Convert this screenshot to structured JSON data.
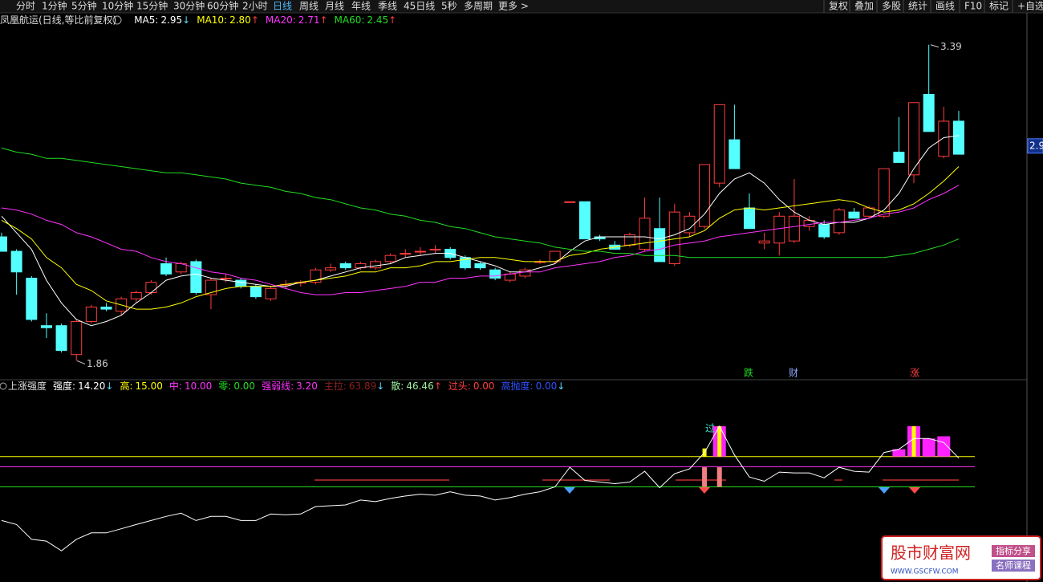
{
  "toolbar": {
    "periods": [
      "分时",
      "1分钟",
      "5分钟",
      "10分钟",
      "15分钟",
      "30分钟",
      "60分钟",
      "2小时",
      "日线",
      "周线",
      "月线",
      "年线",
      "季线",
      "45日线",
      "5秒",
      "多周期",
      "更多 >"
    ],
    "selected": "日线",
    "tools": [
      "复权",
      "叠加",
      "多股",
      "统计",
      "画线",
      "F10",
      "标记",
      "+自选"
    ]
  },
  "chart_data": [
    {
      "type": "candlestick",
      "title": "凤凰航运(日线,等比前复权)",
      "up_color": "#ff3c3c",
      "down_color": "#54ffff",
      "open": [
        2.46,
        2.39,
        2.26,
        2.03,
        2.03,
        1.89,
        2.05,
        2.12,
        2.1,
        2.16,
        2.19,
        2.33,
        2.29,
        2.34,
        2.18,
        2.26,
        2.25,
        2.22,
        2.16,
        2.23,
        2.24,
        2.24,
        2.3,
        2.33,
        2.31,
        2.31,
        2.34,
        2.38,
        2.39,
        2.4,
        2.4,
        2.36,
        2.33,
        2.3,
        2.25,
        2.27,
        2.34,
        2.34,
        2.63,
        2.63,
        2.46,
        2.42,
        2.42,
        2.4,
        2.5,
        2.33,
        2.48,
        2.51,
        2.72,
        2.93,
        2.6,
        2.43,
        2.43,
        2.44,
        2.51,
        2.52,
        2.48,
        2.58,
        2.56,
        2.56,
        2.87,
        2.76,
        3.15,
        2.85,
        3.02
      ],
      "high": [
        2.48,
        2.4,
        2.27,
        2.09,
        2.04,
        2.06,
        2.13,
        2.14,
        2.17,
        2.2,
        2.25,
        2.36,
        2.34,
        2.35,
        2.26,
        2.28,
        2.26,
        2.23,
        2.22,
        2.25,
        2.25,
        2.31,
        2.33,
        2.34,
        2.34,
        2.35,
        2.38,
        2.4,
        2.41,
        2.42,
        2.41,
        2.37,
        2.34,
        2.31,
        2.29,
        2.31,
        2.35,
        2.39,
        2.63,
        2.63,
        2.47,
        2.44,
        2.48,
        2.65,
        2.65,
        2.62,
        2.58,
        2.81,
        3.1,
        3.1,
        2.67,
        2.48,
        2.58,
        2.74,
        2.56,
        2.54,
        2.6,
        2.6,
        2.61,
        2.79,
        3.04,
        3.11,
        3.39,
        3.09,
        3.07
      ],
      "low": [
        2.39,
        2.18,
        2.05,
        1.97,
        1.9,
        1.86,
        2.04,
        2.1,
        2.08,
        2.14,
        2.18,
        2.27,
        2.28,
        2.18,
        2.11,
        2.24,
        2.21,
        2.16,
        2.15,
        2.21,
        2.22,
        2.23,
        2.29,
        2.3,
        2.3,
        2.3,
        2.33,
        2.36,
        2.37,
        2.38,
        2.35,
        2.3,
        2.3,
        2.25,
        2.24,
        2.26,
        2.33,
        2.33,
        2.63,
        2.45,
        2.44,
        2.4,
        2.41,
        2.39,
        2.34,
        2.32,
        2.46,
        2.5,
        2.7,
        2.79,
        2.5,
        2.4,
        2.37,
        2.43,
        2.49,
        2.45,
        2.47,
        2.55,
        2.55,
        2.55,
        2.82,
        2.72,
        2.97,
        2.84,
        2.86
      ],
      "close": [
        2.39,
        2.29,
        2.06,
        2.02,
        1.91,
        2.05,
        2.12,
        2.11,
        2.16,
        2.19,
        2.24,
        2.28,
        2.33,
        2.19,
        2.25,
        2.26,
        2.22,
        2.17,
        2.21,
        2.23,
        2.24,
        2.3,
        2.31,
        2.31,
        2.33,
        2.34,
        2.37,
        2.38,
        2.39,
        2.4,
        2.36,
        2.31,
        2.31,
        2.26,
        2.28,
        2.3,
        2.34,
        2.39,
        2.63,
        2.45,
        2.45,
        2.4,
        2.47,
        2.55,
        2.34,
        2.58,
        2.56,
        2.81,
        3.1,
        2.79,
        2.5,
        2.44,
        2.56,
        2.56,
        2.54,
        2.46,
        2.59,
        2.55,
        2.6,
        2.79,
        2.82,
        3.11,
        2.97,
        3.02,
        2.86
      ],
      "series": [
        {
          "name": "MA5:",
          "label": "2.95",
          "arrow": "↓",
          "arrow_color": "#5ad8ff",
          "color": "#ffffff",
          "values": [
            2.56,
            2.48,
            2.4,
            2.25,
            2.14,
            2.06,
            2.03,
            2.05,
            2.08,
            2.14,
            2.19,
            2.25,
            2.27,
            2.28,
            2.26,
            2.25,
            2.24,
            2.23,
            2.22,
            2.22,
            2.24,
            2.25,
            2.27,
            2.29,
            2.31,
            2.32,
            2.33,
            2.36,
            2.37,
            2.38,
            2.38,
            2.36,
            2.34,
            2.32,
            2.29,
            2.29,
            2.31,
            2.33,
            2.39,
            2.44,
            2.46,
            2.46,
            2.46,
            2.46,
            2.45,
            2.47,
            2.5,
            2.57,
            2.67,
            2.74,
            2.77,
            2.72,
            2.64,
            2.58,
            2.54,
            2.52,
            2.53,
            2.53,
            2.55,
            2.59,
            2.67,
            2.79,
            2.89,
            2.94,
            2.95
          ]
        },
        {
          "name": "MA10:",
          "label": "2.80",
          "arrow": "↑",
          "arrow_color": "#ff3c3c",
          "color": "#ffff00",
          "values": [
            2.54,
            2.5,
            2.45,
            2.36,
            2.31,
            2.23,
            2.2,
            2.15,
            2.13,
            2.11,
            2.11,
            2.12,
            2.14,
            2.17,
            2.19,
            2.21,
            2.22,
            2.22,
            2.22,
            2.23,
            2.24,
            2.25,
            2.26,
            2.27,
            2.29,
            2.29,
            2.31,
            2.31,
            2.32,
            2.34,
            2.34,
            2.35,
            2.36,
            2.36,
            2.35,
            2.34,
            2.34,
            2.34,
            2.37,
            2.38,
            2.4,
            2.41,
            2.42,
            2.43,
            2.44,
            2.45,
            2.46,
            2.49,
            2.55,
            2.59,
            2.6,
            2.59,
            2.6,
            2.61,
            2.62,
            2.63,
            2.64,
            2.63,
            2.6,
            2.58,
            2.59,
            2.62,
            2.67,
            2.73,
            2.8
          ]
        },
        {
          "name": "MA20:",
          "label": "2.71",
          "arrow": "↑",
          "arrow_color": "#ff3c3c",
          "color": "#ff33ff",
          "values": [
            2.6,
            2.59,
            2.57,
            2.54,
            2.52,
            2.48,
            2.46,
            2.43,
            2.4,
            2.39,
            2.36,
            2.34,
            2.33,
            2.31,
            2.29,
            2.28,
            2.26,
            2.25,
            2.23,
            2.21,
            2.19,
            2.18,
            2.18,
            2.19,
            2.19,
            2.2,
            2.21,
            2.22,
            2.24,
            2.24,
            2.26,
            2.26,
            2.27,
            2.27,
            2.28,
            2.29,
            2.29,
            2.31,
            2.32,
            2.33,
            2.34,
            2.36,
            2.37,
            2.39,
            2.4,
            2.42,
            2.43,
            2.44,
            2.46,
            2.47,
            2.48,
            2.49,
            2.5,
            2.51,
            2.52,
            2.53,
            2.53,
            2.54,
            2.55,
            2.57,
            2.58,
            2.6,
            2.64,
            2.67,
            2.71
          ]
        },
        {
          "name": "MA60:",
          "label": "2.45",
          "arrow": "↑",
          "arrow_color": "#ff3c3c",
          "color": "#22dd22",
          "values": [
            2.89,
            2.87,
            2.86,
            2.84,
            2.84,
            2.83,
            2.82,
            2.81,
            2.8,
            2.79,
            2.78,
            2.77,
            2.77,
            2.76,
            2.75,
            2.74,
            2.72,
            2.71,
            2.7,
            2.68,
            2.67,
            2.65,
            2.64,
            2.62,
            2.6,
            2.59,
            2.57,
            2.56,
            2.54,
            2.53,
            2.51,
            2.5,
            2.48,
            2.46,
            2.45,
            2.44,
            2.43,
            2.41,
            2.4,
            2.39,
            2.39,
            2.38,
            2.38,
            2.37,
            2.37,
            2.37,
            2.36,
            2.36,
            2.36,
            2.36,
            2.36,
            2.36,
            2.36,
            2.36,
            2.36,
            2.36,
            2.36,
            2.36,
            2.36,
            2.36,
            2.37,
            2.38,
            2.4,
            2.42,
            2.45
          ]
        }
      ],
      "ylim": [
        1.78,
        3.49
      ],
      "yticks": [
        2.9
      ],
      "max_label": 3.39,
      "min_label": 1.86,
      "markers": [
        {
          "text": "跌",
          "color": "#22dd22"
        },
        {
          "text": "财",
          "color": "#8fa8ff"
        },
        {
          "text": "涨",
          "color": "#ff4040"
        }
      ]
    },
    {
      "type": "line",
      "title": "上涨强度",
      "series": [
        {
          "name": "强度:",
          "label": "14.20",
          "arrow": "↓",
          "arrow_color": "#5ad8ff",
          "color": "#ffffff",
          "values": [
            -16.6,
            -18.6,
            -25.9,
            -26.8,
            -31.6,
            -25.9,
            -22.7,
            -22.7,
            -20.7,
            -18.6,
            -16.6,
            -14.6,
            -13.0,
            -16.6,
            -14.6,
            -14.6,
            -16.6,
            -16.6,
            -13.4,
            -13.8,
            -13.4,
            -9.7,
            -9.3,
            -8.9,
            -6.5,
            -7.3,
            -5.7,
            -4.5,
            -3.6,
            -4.1,
            -2.4,
            -4.1,
            -4.5,
            -6.5,
            -5.3,
            -3.6,
            -2.4,
            0,
            9.7,
            3.2,
            2.4,
            1.6,
            2.4,
            7.7,
            -0.4,
            6.5,
            8.9,
            17.0,
            30.0,
            15.8,
            4.9,
            2.8,
            7.3,
            6.9,
            6.9,
            4.5,
            9.7,
            7.7,
            7.3,
            17.0,
            18.6,
            23.9,
            23.9,
            21.9,
            14.2
          ]
        }
      ],
      "levels": [
        {
          "name": "高:",
          "value": 15,
          "label": "15.00",
          "color": "#ffff00"
        },
        {
          "name": "中:",
          "value": 10,
          "label": "10.00",
          "color": "#ff33ff"
        },
        {
          "name": "零:",
          "value": 0,
          "label": "0.00",
          "color": "#22dd22"
        }
      ],
      "others": [
        {
          "name": "强弱线:",
          "label": "3.20",
          "color": "#ff33ff"
        },
        {
          "name": "主拉:",
          "label": "63.89",
          "arrow": "↓",
          "arrow_color": "#5ad8ff",
          "color": "#8a2020"
        },
        {
          "name": "散:",
          "label": "46.46",
          "arrow": "↑",
          "arrow_color": "#ff3c3c",
          "color": "#9cf29c"
        },
        {
          "name": "过头:",
          "label": "0.00",
          "color": "#ff3c3c"
        },
        {
          "name": "高抛度:",
          "label": "0.00",
          "arrow": "↓",
          "arrow_color": "#5ad8ff",
          "color": "#3050ff"
        }
      ],
      "bars": [
        {
          "color": "#ff22ff",
          "values": [
            null,
            null,
            null,
            null,
            null,
            null,
            null,
            null,
            null,
            null,
            null,
            null,
            null,
            null,
            null,
            null,
            null,
            null,
            null,
            null,
            null,
            null,
            null,
            null,
            null,
            null,
            null,
            null,
            null,
            null,
            null,
            null,
            null,
            null,
            null,
            null,
            null,
            null,
            null,
            null,
            null,
            null,
            null,
            null,
            null,
            null,
            null,
            null,
            30,
            null,
            null,
            null,
            null,
            null,
            null,
            null,
            null,
            null,
            null,
            null,
            18.6,
            30,
            23.9,
            25,
            null
          ]
        },
        {
          "color": "#ffff00",
          "values": [
            null,
            null,
            null,
            null,
            null,
            null,
            null,
            null,
            null,
            null,
            null,
            null,
            null,
            null,
            null,
            null,
            null,
            null,
            null,
            null,
            null,
            null,
            null,
            null,
            null,
            null,
            null,
            null,
            null,
            null,
            null,
            null,
            null,
            null,
            null,
            null,
            null,
            null,
            null,
            null,
            null,
            null,
            null,
            null,
            null,
            null,
            null,
            19,
            30,
            null,
            null,
            null,
            null,
            null,
            null,
            null,
            null,
            null,
            null,
            null,
            null,
            30,
            null,
            null,
            null
          ]
        },
        {
          "color": "#f08080",
          "values": [
            null,
            null,
            null,
            null,
            null,
            null,
            null,
            null,
            null,
            null,
            null,
            null,
            null,
            null,
            null,
            null,
            null,
            null,
            null,
            null,
            null,
            null,
            null,
            null,
            null,
            null,
            null,
            null,
            null,
            null,
            null,
            null,
            null,
            null,
            null,
            null,
            null,
            null,
            null,
            null,
            null,
            null,
            null,
            null,
            null,
            null,
            null,
            9.7,
            9.7,
            null,
            null,
            null,
            null,
            null,
            null,
            null,
            null,
            null,
            null,
            null,
            null,
            null,
            null,
            null,
            null
          ]
        }
      ],
      "annotation": "过",
      "ylim": [
        -45,
        48.2
      ]
    }
  ],
  "watermark": {
    "title": "股市财富网",
    "tags": [
      "指标分享",
      "名师课程"
    ],
    "url": "WWW.GSCFW.COM"
  }
}
